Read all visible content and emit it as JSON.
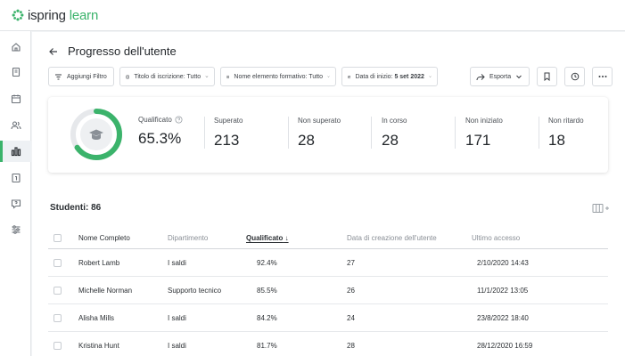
{
  "app": {
    "logo_text_main": "ispring",
    "logo_text_accent": "learn",
    "accent_color": "#3bb36b"
  },
  "sidebar": {
    "items": [
      {
        "icon": "home-icon"
      },
      {
        "icon": "book-icon"
      },
      {
        "icon": "calendar-icon"
      },
      {
        "icon": "users-icon"
      },
      {
        "icon": "reports-icon",
        "active": true
      },
      {
        "icon": "course-icon"
      },
      {
        "icon": "help-icon"
      },
      {
        "icon": "settings-sliders-icon"
      }
    ]
  },
  "header": {
    "title": "Progresso dell'utente"
  },
  "filters": {
    "add_filter": "Aggiungi Filtro",
    "enrollment": "Titolo di iscrizione: Tutto",
    "learning_item": "Nome elemento formativo: Tutto",
    "start_date_label": "Data di inizio:",
    "start_date_value": "5 set 2022"
  },
  "actions": {
    "export": "Esporta"
  },
  "stats": {
    "qualified_label": "Qualificato",
    "qualified_value": "65.3%",
    "qualified_fraction": 0.653,
    "items": [
      {
        "label": "Superato",
        "value": "213"
      },
      {
        "label": "Non superato",
        "value": "28"
      },
      {
        "label": "In corso",
        "value": "28"
      },
      {
        "label": "Non iniziato",
        "value": "171"
      },
      {
        "label": "Non ritardo",
        "value": "18"
      }
    ]
  },
  "students": {
    "title": "Studenti: 86",
    "columns": {
      "name": "Nome Completo",
      "department": "Dipartimento",
      "qualified": "Qualificato",
      "sort_arrow": "↓",
      "created": "Data di creazione dell'utente",
      "last_access": "Ultimo accesso"
    },
    "rows": [
      {
        "name": "Robert Lamb",
        "department": "I saldi",
        "qualified": "92.4%",
        "created": "27",
        "last_access": "2/10/2020 14:43"
      },
      {
        "name": "Michelle Norman",
        "department": "Supporto tecnico",
        "qualified": "85.5%",
        "created": "26",
        "last_access": "11/1/2022 13:05"
      },
      {
        "name": "Alisha Mills",
        "department": "I saldi",
        "qualified": "84.2%",
        "created": "24",
        "last_access": "23/8/2022 18:40"
      },
      {
        "name": "Kristina Hunt",
        "department": "I saldi",
        "qualified": "81.7%",
        "created": "28",
        "last_access": "28/12/2020 16:59"
      }
    ]
  }
}
